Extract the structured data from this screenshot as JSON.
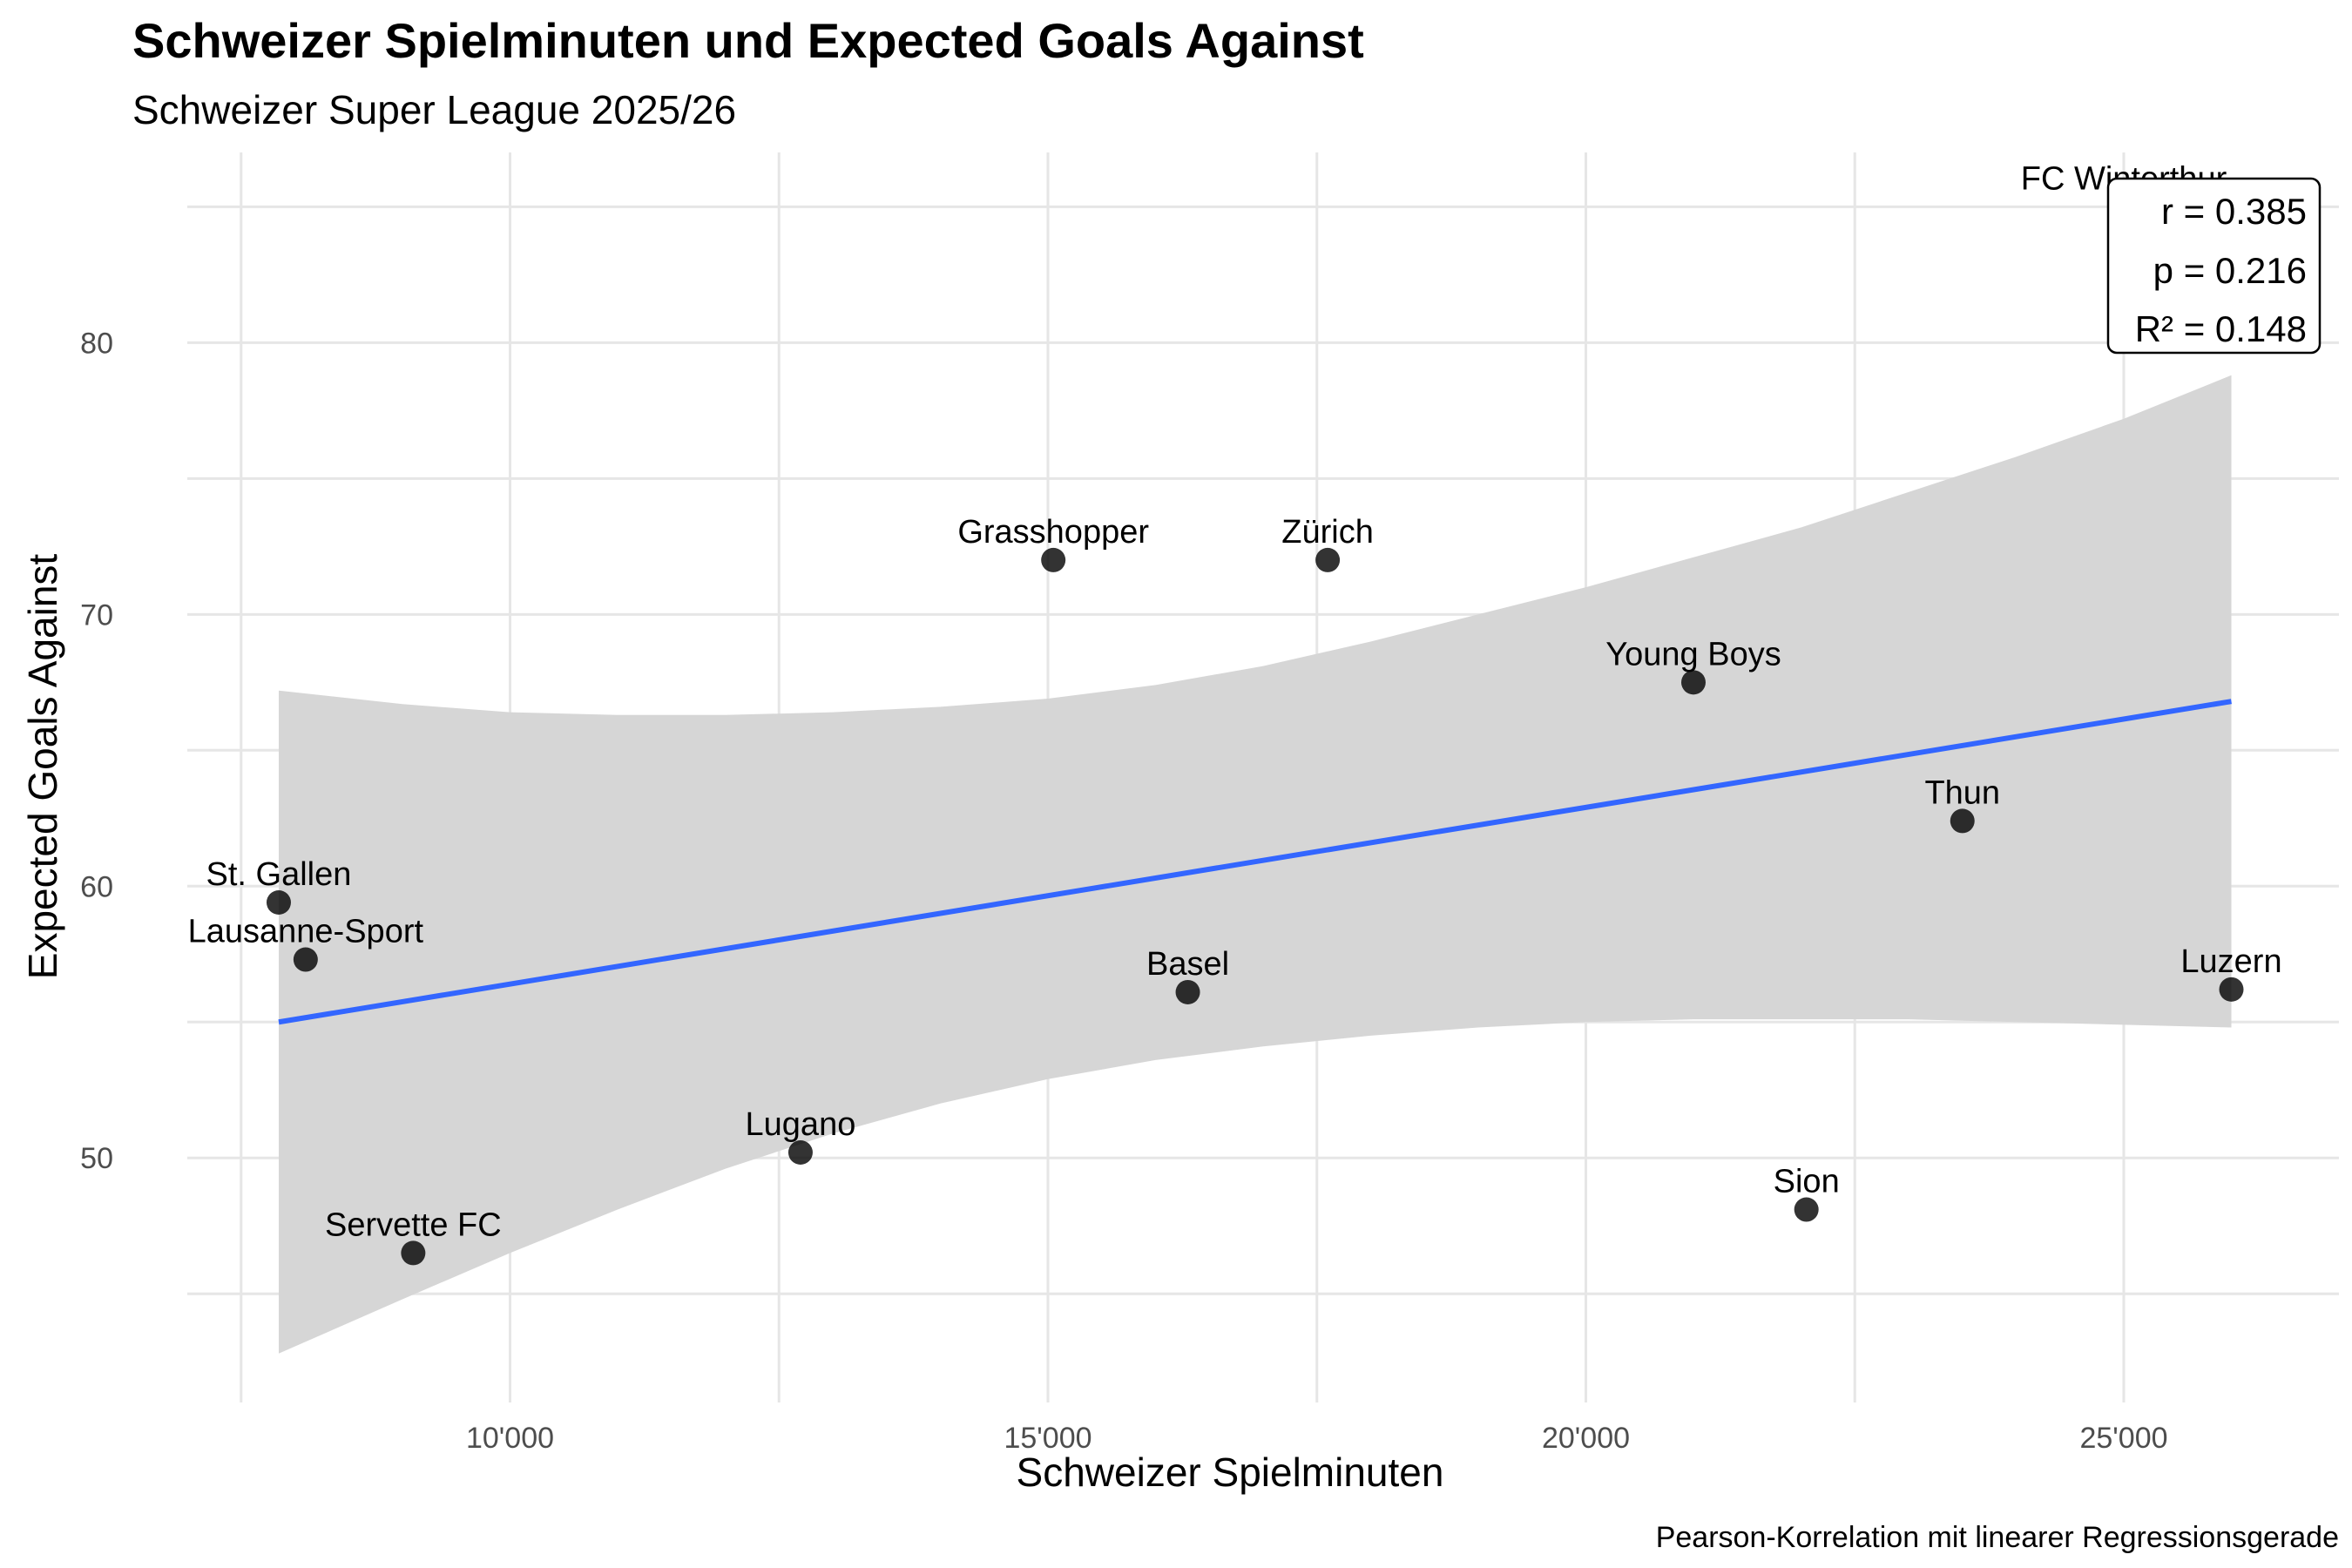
{
  "chart_data": {
    "type": "scatter",
    "title": "Schweizer Spielminuten und Expected Goals Against",
    "subtitle": "Schweizer Super League 2025/26",
    "xlabel": "Schweizer Spielminuten",
    "ylabel": "Expected Goals Against",
    "caption": "Pearson-Korrelation mit linearer Regressionsgerade",
    "xlim": [
      7000,
      27000
    ],
    "ylim": [
      41,
      87
    ],
    "x_ticks": [
      10000,
      15000,
      20000,
      25000
    ],
    "x_tick_labels": [
      "10'000",
      "15'000",
      "20'000",
      "25'000"
    ],
    "y_ticks": [
      50,
      60,
      70,
      80
    ],
    "y_tick_labels": [
      "50",
      "60",
      "70",
      "80"
    ],
    "grid": true,
    "points": [
      {
        "team": "St. Gallen",
        "x": 7850,
        "y": 59.4
      },
      {
        "team": "Lausanne-Sport",
        "x": 8100,
        "y": 57.3
      },
      {
        "team": "Servette FC",
        "x": 9100,
        "y": 46.5
      },
      {
        "team": "Lugano",
        "x": 12700,
        "y": 50.2
      },
      {
        "team": "Grasshopper",
        "x": 15050,
        "y": 72.0
      },
      {
        "team": "Basel",
        "x": 16300,
        "y": 56.1
      },
      {
        "team": "Zürich",
        "x": 17600,
        "y": 72.0
      },
      {
        "team": "Young Boys",
        "x": 21000,
        "y": 67.5
      },
      {
        "team": "Sion",
        "x": 22050,
        "y": 48.1
      },
      {
        "team": "Thun",
        "x": 23500,
        "y": 62.4
      },
      {
        "team": "Luzern",
        "x": 26000,
        "y": 56.2
      },
      {
        "team": "FC Winterthur",
        "x": 25000,
        "y": 85.0
      }
    ],
    "regression": {
      "x": [
        7850,
        26000
      ],
      "y": [
        55.0,
        66.8
      ]
    },
    "confidence_band": {
      "x": [
        7850,
        9000,
        10000,
        11000,
        12000,
        13000,
        14000,
        15000,
        16000,
        17000,
        18000,
        19000,
        20000,
        21000,
        22000,
        23000,
        24000,
        25000,
        26000
      ],
      "upper": [
        67.2,
        66.7,
        66.4,
        66.3,
        66.3,
        66.4,
        66.6,
        66.9,
        67.4,
        68.1,
        69.0,
        70.0,
        71.0,
        72.1,
        73.2,
        74.5,
        75.8,
        77.2,
        78.8
      ],
      "lower": [
        42.8,
        44.8,
        46.5,
        48.1,
        49.6,
        50.9,
        52.0,
        52.9,
        53.6,
        54.1,
        54.5,
        54.8,
        55.0,
        55.1,
        55.1,
        55.1,
        55.0,
        54.9,
        54.8
      ]
    },
    "stats": [
      "r = 0.385",
      "p = 0.216",
      "R² = 0.148"
    ],
    "colors": {
      "points": "#000000",
      "line": "#3366ff",
      "band": "#d6d6d6",
      "grid": "#e6e6e6"
    }
  }
}
